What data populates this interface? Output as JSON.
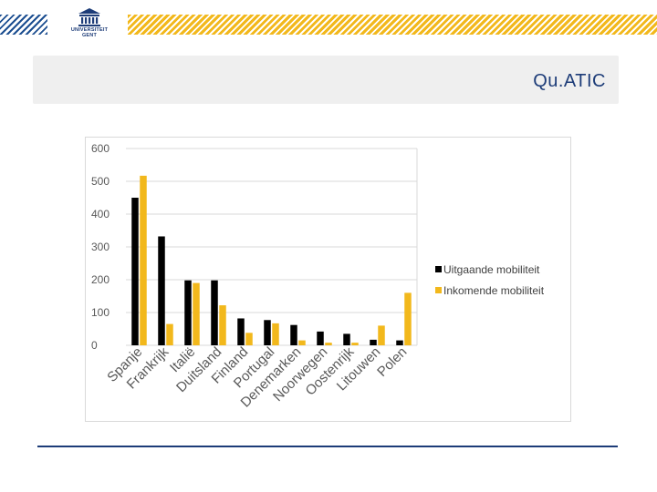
{
  "header": {
    "logo_line1": "UNIVERSITEIT",
    "logo_line2": "GENT",
    "logo_icon": "university-building-icon",
    "stripe_left_color": "#1d4f91",
    "stripe_right_color": "#f2b81c"
  },
  "slide": {
    "title": "Qu.ATIC"
  },
  "chart_data": {
    "type": "bar",
    "categories": [
      "Spanje",
      "Frankrijk",
      "Italië",
      "Duitsland",
      "Finland",
      "Portugal",
      "Denemarken",
      "Noorwegen",
      "Oostenrijk",
      "Litouwen",
      "Polen"
    ],
    "series": [
      {
        "name": "Uitgaande mobiliteit",
        "color": "#000000",
        "values": [
          450,
          332,
          198,
          198,
          82,
          77,
          62,
          42,
          35,
          17,
          15
        ]
      },
      {
        "name": "Inkomende mobiliteit",
        "color": "#f2b81c",
        "values": [
          517,
          65,
          190,
          122,
          38,
          67,
          15,
          8,
          8,
          60,
          160
        ]
      }
    ],
    "title": "",
    "xlabel": "",
    "ylabel": "",
    "ylim": [
      0,
      600
    ],
    "yticks": [
      0,
      100,
      200,
      300,
      400,
      500,
      600
    ],
    "grid": true,
    "legend": "right"
  }
}
